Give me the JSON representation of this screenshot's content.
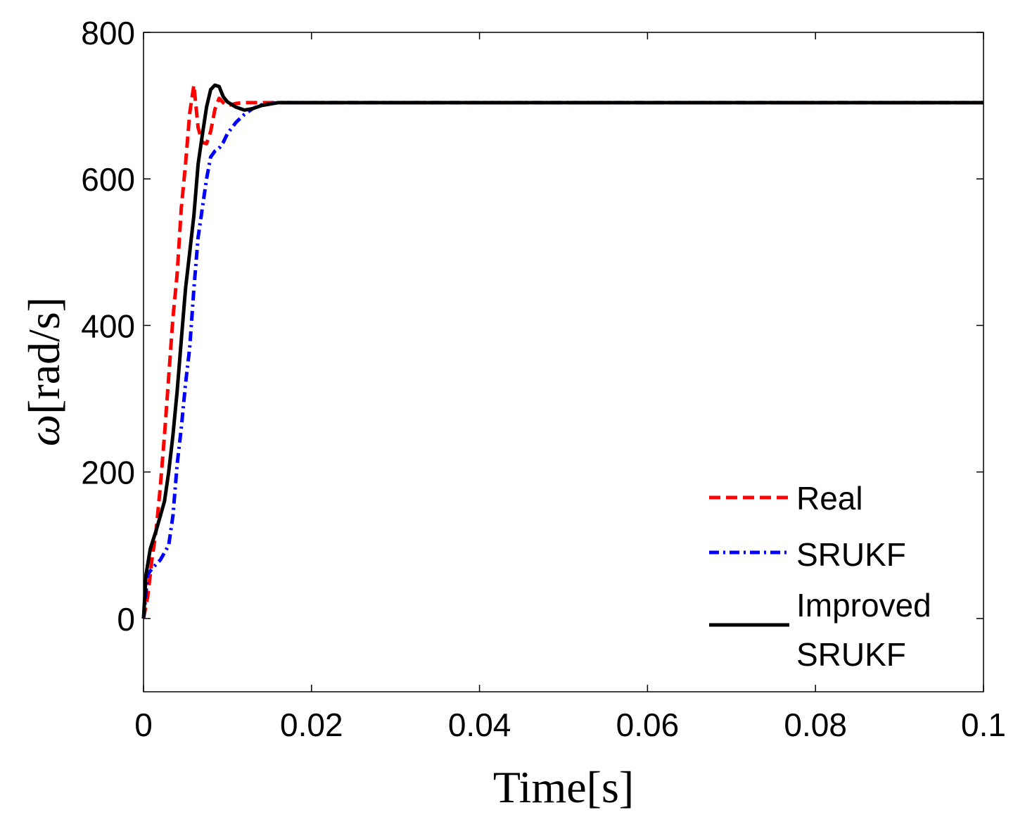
{
  "chart_data": {
    "type": "line",
    "title": "",
    "xlabel": "Time[s]",
    "ylabel_symbol": "ω",
    "ylabel_unit": "[rad/s]",
    "xlim": [
      0,
      0.1
    ],
    "ylim": [
      -100,
      800
    ],
    "x_ticks": [
      0,
      0.02,
      0.04,
      0.06,
      0.08,
      0.1
    ],
    "x_tick_labels": [
      "0",
      "0.02",
      "0.04",
      "0.06",
      "0.08",
      "0.1"
    ],
    "y_ticks": [
      0,
      200,
      400,
      600,
      800
    ],
    "y_tick_labels": [
      "0",
      "200",
      "400",
      "600",
      "800"
    ],
    "grid": false,
    "legend_position": "bottom-right",
    "legend": {
      "real": "Real",
      "srukf": "SRUKF",
      "improved_line1": "Improved",
      "improved_line2": "SRUKF"
    },
    "series": [
      {
        "name": "Real",
        "color": "#ff0000",
        "style": "dashed",
        "points": [
          [
            0,
            0
          ],
          [
            0.0005,
            30
          ],
          [
            0.001,
            80
          ],
          [
            0.0015,
            120
          ],
          [
            0.002,
            180
          ],
          [
            0.0025,
            250
          ],
          [
            0.003,
            330
          ],
          [
            0.0035,
            410
          ],
          [
            0.004,
            470
          ],
          [
            0.0045,
            560
          ],
          [
            0.005,
            620
          ],
          [
            0.0055,
            690
          ],
          [
            0.006,
            728
          ],
          [
            0.0065,
            670
          ],
          [
            0.007,
            650
          ],
          [
            0.0075,
            648
          ],
          [
            0.008,
            665
          ],
          [
            0.0085,
            695
          ],
          [
            0.009,
            710
          ],
          [
            0.0095,
            704
          ],
          [
            0.01,
            700
          ],
          [
            0.011,
            703
          ],
          [
            0.012,
            704
          ],
          [
            0.014,
            704
          ],
          [
            0.017,
            704
          ],
          [
            0.1,
            704
          ]
        ]
      },
      {
        "name": "SRUKF",
        "color": "#0000ff",
        "style": "dashdot",
        "points": [
          [
            0,
            0
          ],
          [
            0.0005,
            60
          ],
          [
            0.001,
            68
          ],
          [
            0.002,
            80
          ],
          [
            0.003,
            100
          ],
          [
            0.0035,
            140
          ],
          [
            0.004,
            210
          ],
          [
            0.0045,
            260
          ],
          [
            0.005,
            320
          ],
          [
            0.0055,
            370
          ],
          [
            0.006,
            450
          ],
          [
            0.0065,
            520
          ],
          [
            0.007,
            560
          ],
          [
            0.0075,
            600
          ],
          [
            0.008,
            630
          ],
          [
            0.0085,
            638
          ],
          [
            0.009,
            642
          ],
          [
            0.0095,
            650
          ],
          [
            0.01,
            662
          ],
          [
            0.011,
            677
          ],
          [
            0.012,
            688
          ],
          [
            0.013,
            696
          ],
          [
            0.014,
            701
          ],
          [
            0.016,
            704
          ],
          [
            0.1,
            704
          ]
        ]
      },
      {
        "name": "Improved SRUKF",
        "color": "#000000",
        "style": "solid",
        "points": [
          [
            0,
            0
          ],
          [
            0.0003,
            60
          ],
          [
            0.0008,
            95
          ],
          [
            0.0015,
            120
          ],
          [
            0.002,
            140
          ],
          [
            0.0025,
            160
          ],
          [
            0.003,
            200
          ],
          [
            0.0035,
            250
          ],
          [
            0.004,
            310
          ],
          [
            0.0045,
            380
          ],
          [
            0.005,
            450
          ],
          [
            0.0055,
            500
          ],
          [
            0.006,
            550
          ],
          [
            0.0065,
            620
          ],
          [
            0.007,
            660
          ],
          [
            0.0075,
            698
          ],
          [
            0.008,
            722
          ],
          [
            0.0085,
            728
          ],
          [
            0.009,
            726
          ],
          [
            0.0095,
            712
          ],
          [
            0.01,
            705
          ],
          [
            0.011,
            698
          ],
          [
            0.012,
            694
          ],
          [
            0.013,
            696
          ],
          [
            0.014,
            700
          ],
          [
            0.016,
            704
          ],
          [
            0.1,
            704
          ]
        ]
      }
    ]
  }
}
